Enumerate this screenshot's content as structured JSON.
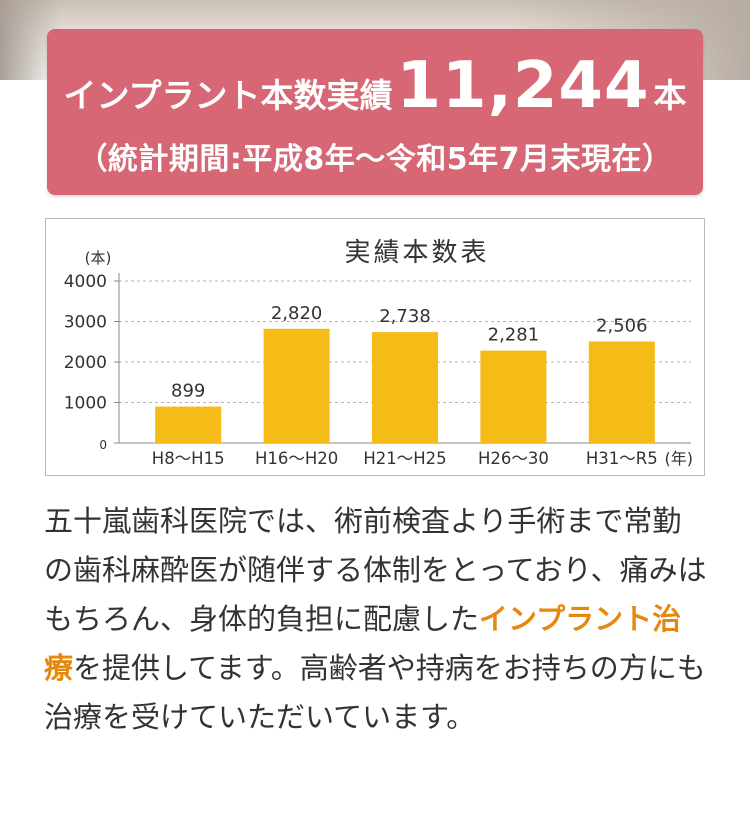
{
  "banner": {
    "label": "インプラント本数実績",
    "value": "11,244",
    "unit": "本",
    "period": "（統計期間:平成8年～令和5年7月末現在）"
  },
  "chart_data": {
    "type": "bar",
    "title": "実績本数表",
    "ylabel": "(本)",
    "xlabel": "(年)",
    "categories": [
      "H8～H15",
      "H16～H20",
      "H21～H25",
      "H26～30",
      "H31～R5"
    ],
    "values": [
      899,
      2820,
      2738,
      2281,
      2506
    ],
    "value_labels": [
      "899",
      "2,820",
      "2,738",
      "2,281",
      "2,506"
    ],
    "ylim": [
      0,
      4000
    ],
    "yticks": [
      0,
      1000,
      2000,
      3000,
      4000
    ],
    "grid": true,
    "bar_color": "#f5bb16",
    "grid_color": "#b5b5b5"
  },
  "body": {
    "text_before": "五十嵐歯科医院では、術前検査より手術まで常勤の歯科麻酔医が随伴する体制をとっており、痛みはもちろん、身体的負担に配慮した",
    "highlight": "インプラント治療",
    "text_after": "を提供してます。高齢者や持病をお持ちの方にも治療を受けていただいています。"
  },
  "colors": {
    "banner_bg": "#d76775",
    "highlight": "#e6880e"
  }
}
